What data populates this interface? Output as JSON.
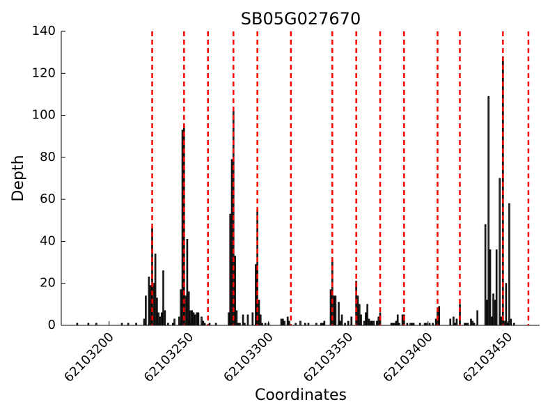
{
  "chart_data": {
    "type": "bar",
    "title": "SB05G027670",
    "xlabel": "Coordinates",
    "ylabel": "Depth",
    "xlim": [
      62103170,
      62103470
    ],
    "xticks": [
      62103200,
      62103250,
      62103300,
      62103350,
      62103400,
      62103450
    ],
    "ylim": [
      0,
      140
    ],
    "yticks": [
      0,
      20,
      40,
      60,
      80,
      100,
      120,
      140
    ],
    "color": "#2b2b2b",
    "edgecolor": "#000000",
    "x": [
      62103180,
      62103187,
      62103192,
      62103208,
      62103212,
      62103217,
      62103222,
      62103223,
      62103225,
      62103226,
      62103227,
      62103228,
      62103229,
      62103230,
      62103231,
      62103232,
      62103233,
      62103234,
      62103235,
      62103237,
      62103240,
      62103241,
      62103244,
      62103245,
      62103246,
      62103247,
      62103248,
      62103249,
      62103250,
      62103251,
      62103252,
      62103253,
      62103254,
      62103255,
      62103256,
      62103258,
      62103259,
      62103260,
      62103263,
      62103267,
      62103275,
      62103276,
      62103277,
      62103278,
      62103279,
      62103280,
      62103281,
      62103282,
      62103284,
      62103285,
      62103287,
      62103290,
      62103292,
      62103293,
      62103294,
      62103295,
      62103296,
      62103298,
      62103300,
      62103308,
      62103309,
      62103310,
      62103312,
      62103313,
      62103317,
      62103320,
      62103323,
      62103325,
      62103330,
      62103333,
      62103334,
      62103335,
      62103339,
      62103340,
      62103341,
      62103342,
      62103344,
      62103345,
      62103346,
      62103348,
      62103350,
      62103352,
      62103355,
      62103356,
      62103357,
      62103358,
      62103360,
      62103361,
      62103362,
      62103363,
      62103364,
      62103365,
      62103366,
      62103368,
      62103369,
      62103370,
      62103377,
      62103378,
      62103379,
      62103380,
      62103381,
      62103382,
      62103384,
      62103385,
      62103387,
      62103389,
      62103390,
      62103391,
      62103395,
      62103398,
      62103399,
      62103401,
      62103403,
      62103405,
      62103406,
      62103407,
      62103414,
      62103416,
      62103417,
      62103418,
      62103420,
      62103423,
      62103424,
      62103425,
      62103427,
      62103428,
      62103429,
      62103431,
      62103436,
      62103437,
      62103438,
      62103439,
      62103440,
      62103441,
      62103442,
      62103443,
      62103445,
      62103446,
      62103447,
      62103448,
      62103449,
      62103450,
      62103451,
      62103452,
      62103454
    ],
    "values": [
      1,
      1,
      1,
      1,
      1,
      1,
      3,
      14,
      23,
      19,
      46,
      20,
      34,
      13,
      6,
      4,
      6,
      26,
      7,
      1,
      1,
      3,
      4,
      17,
      93,
      95,
      14,
      41,
      16,
      7,
      7,
      6,
      5,
      6,
      6,
      4,
      2,
      1,
      1,
      1,
      6,
      53,
      79,
      102,
      33,
      7,
      1,
      1,
      5,
      1,
      5,
      6,
      29,
      55,
      12,
      5,
      1,
      1,
      1,
      3,
      3,
      2,
      4,
      2,
      1,
      2,
      1,
      1,
      1,
      1,
      1,
      2,
      17,
      31,
      14,
      14,
      11,
      2,
      5,
      1,
      2,
      4,
      21,
      14,
      10,
      5,
      2,
      6,
      10,
      3,
      2,
      2,
      2,
      2,
      4,
      6,
      1,
      1,
      1,
      2,
      5,
      1,
      5,
      5,
      1,
      1,
      1,
      1,
      1,
      1,
      1,
      1,
      1,
      3,
      7,
      9,
      3,
      4,
      1,
      3,
      10,
      1,
      1,
      1,
      3,
      2,
      1,
      7,
      48,
      12,
      109,
      36,
      4,
      15,
      12,
      36,
      70,
      4,
      128,
      2,
      20,
      1,
      58,
      3,
      1
    ],
    "vlines": [
      62103227,
      62103247,
      62103262,
      62103278,
      62103293,
      62103314,
      62103340,
      62103355,
      62103370,
      62103385,
      62103406,
      62103420,
      62103447,
      62103463
    ],
    "vline_color": "#ff0000"
  }
}
